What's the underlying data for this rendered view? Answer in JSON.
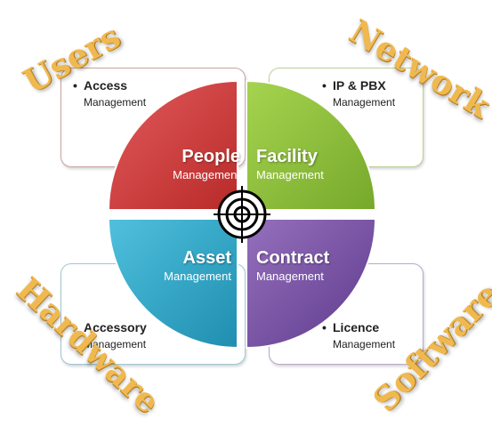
{
  "quadrants": {
    "people": {
      "title": "People",
      "subtitle": "Management",
      "color": "#d23c3c"
    },
    "facility": {
      "title": "Facility",
      "subtitle": "Management",
      "color": "#8fbd3a"
    },
    "asset": {
      "title": "Asset",
      "subtitle": "Management",
      "color": "#33a7c6"
    },
    "contract": {
      "title": "Contract",
      "subtitle": "Management",
      "color": "#7c54a6"
    }
  },
  "bullets": {
    "top_left": {
      "title": "Access",
      "sub": "Management"
    },
    "top_right": {
      "title": "IP & PBX",
      "sub": "Management"
    },
    "bottom_left": {
      "title": "Accessory",
      "sub": "Management"
    },
    "bottom_right": {
      "title": "Licence",
      "sub": "Management"
    }
  },
  "corners": {
    "users": "Users",
    "network": "Network",
    "hardware": "Hardware",
    "software": "Software"
  },
  "target_icon": "bullseye-icon",
  "accent_text_color": "#f0b94f"
}
